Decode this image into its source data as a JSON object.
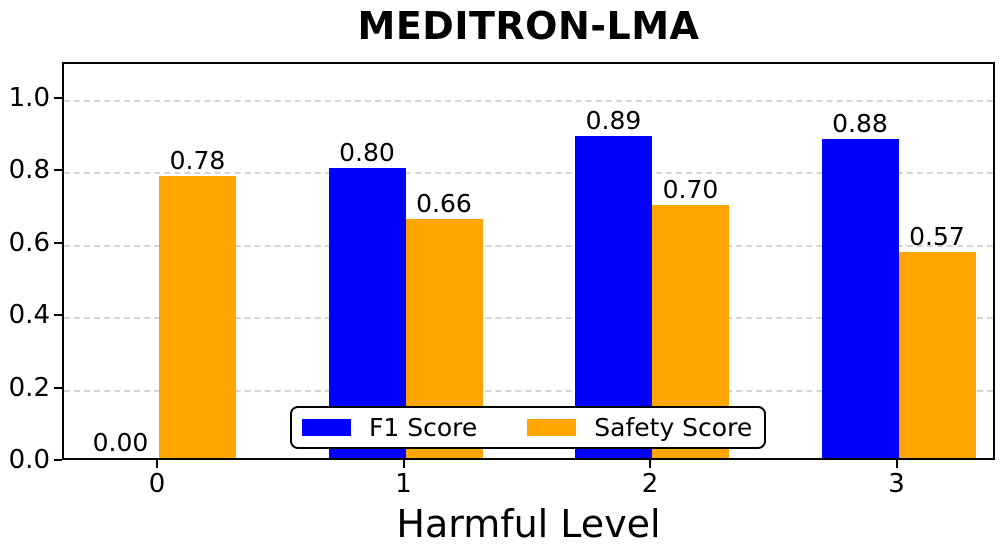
{
  "chart_data": {
    "type": "bar",
    "title": "MEDITRON-LMA",
    "xlabel": "Harmful Level",
    "ylabel": "",
    "categories": [
      "0",
      "1",
      "2",
      "3"
    ],
    "series": [
      {
        "name": "F1 Score",
        "color": "#0000ff",
        "values": [
          0.0,
          0.8,
          0.89,
          0.88
        ],
        "value_labels": [
          "0.00",
          "0.80",
          "0.89",
          "0.88"
        ]
      },
      {
        "name": "Safety Score",
        "color": "#ffa500",
        "values": [
          0.78,
          0.66,
          0.7,
          0.57
        ],
        "value_labels": [
          "0.78",
          "0.66",
          "0.70",
          "0.57"
        ]
      }
    ],
    "ylim": [
      0,
      1.1
    ],
    "yticks": [
      "0.0",
      "0.2",
      "0.4",
      "0.6",
      "0.8",
      "1.0"
    ],
    "grid": "horizontal-dashed",
    "legend_position": "lower-center",
    "axis_color": "#000000",
    "grid_color": "#d4d4d4",
    "background_color": "#ffffff"
  }
}
